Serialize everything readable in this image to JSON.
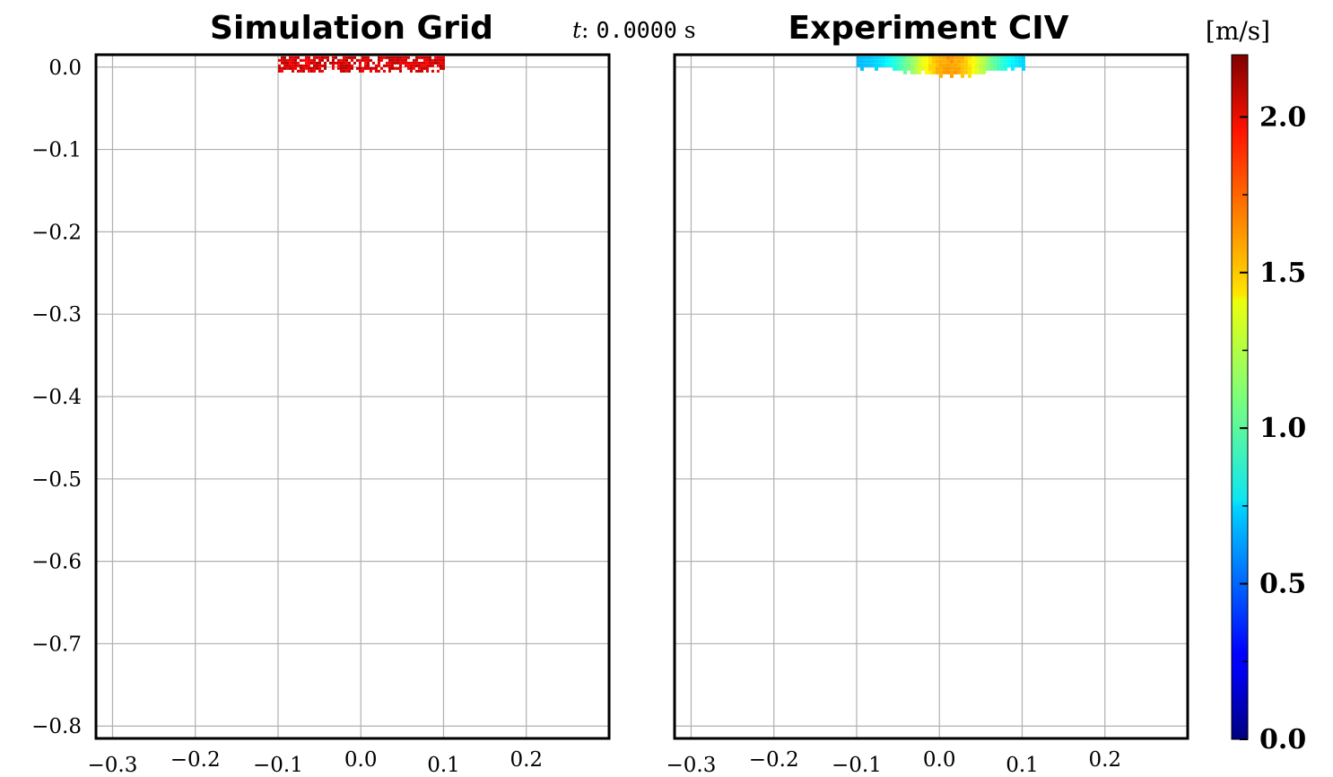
{
  "header": {
    "time_label": "t",
    "time_sep": ":",
    "time_value": "0.0000",
    "time_unit": "s"
  },
  "colorbar": {
    "unit_label": "[m/s]",
    "min": 0.0,
    "max": 2.2,
    "ticks": [
      0.0,
      0.5,
      1.0,
      1.5,
      2.0
    ],
    "tick_labels": [
      "0.0",
      "0.5",
      "1.0",
      "1.5",
      "2.0"
    ],
    "colormap": "jet"
  },
  "chart_data": [
    {
      "type": "heatmap",
      "title": "Simulation Grid",
      "xlabel": "",
      "ylabel": "",
      "xlim": [
        -0.32,
        0.3
      ],
      "ylim": [
        -0.815,
        0.015
      ],
      "x_ticks": [
        -0.3,
        -0.2,
        -0.1,
        0.0,
        0.1,
        0.2
      ],
      "x_tick_labels": [
        "−0.3",
        "−0.2",
        "−0.1",
        "0.0",
        "0.1",
        "0.2"
      ],
      "y_ticks": [
        0.0,
        -0.1,
        -0.2,
        -0.3,
        -0.4,
        -0.5,
        -0.6,
        -0.7,
        -0.8
      ],
      "y_tick_labels": [
        "0.0",
        "−0.1",
        "−0.2",
        "−0.3",
        "−0.4",
        "−0.5",
        "−0.6",
        "−0.7",
        "−0.8"
      ],
      "grid": true,
      "field": {
        "x_range": [
          -0.1,
          0.1
        ],
        "y_range": [
          -0.005,
          0.013
        ],
        "speed_min": 1.9,
        "speed_max": 2.1,
        "pattern": "speckled"
      }
    },
    {
      "type": "heatmap",
      "title": "Experiment CIV",
      "xlabel": "",
      "ylabel": "",
      "xlim": [
        -0.32,
        0.3
      ],
      "ylim": [
        -0.815,
        0.015
      ],
      "x_ticks": [
        -0.3,
        -0.2,
        -0.1,
        0.0,
        0.1,
        0.2
      ],
      "x_tick_labels": [
        "−0.3",
        "−0.2",
        "−0.1",
        "0.0",
        "0.1",
        "0.2"
      ],
      "y_ticks": [
        0.0,
        -0.1,
        -0.2,
        -0.3,
        -0.4,
        -0.5,
        -0.6,
        -0.7,
        -0.8
      ],
      "y_tick_labels": [],
      "grid": true,
      "field": {
        "x_range": [
          -0.1,
          0.1
        ],
        "y_range": [
          -0.01,
          0.013
        ],
        "speed_min": 0.5,
        "speed_max": 1.6,
        "pattern": "smooth"
      }
    }
  ]
}
